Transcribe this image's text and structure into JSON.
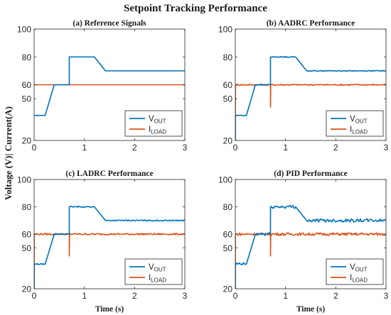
{
  "figure_title": "Setpoint Tracking Performance",
  "shared_ylabel": "Voltage (V)| Current(A)",
  "shared_xlabel": "Time (s)",
  "colors": {
    "v_out": "#0072BD",
    "i_load": "#D95319"
  },
  "chart_data": [
    {
      "type": "line",
      "title": "(a) Reference Signals",
      "xlim": [
        0,
        3
      ],
      "ylim": [
        20,
        100
      ],
      "xticks": [
        "0",
        "1",
        "2",
        "3"
      ],
      "yticks": [
        "20",
        "50",
        "60",
        "80",
        "100"
      ],
      "grid": false,
      "legend_placement": "lower-right",
      "series": [
        {
          "name": "V_OUT",
          "noise": 0,
          "x": [
            0,
            0.22,
            0.4,
            0.7,
            0.7,
            1.2,
            1.42,
            3.0
          ],
          "y": [
            38,
            38,
            60,
            60,
            80,
            80,
            70,
            70
          ]
        },
        {
          "name": "I_LOAD",
          "noise": 0,
          "x": [
            0,
            3.0
          ],
          "y": [
            60,
            60
          ]
        }
      ]
    },
    {
      "type": "line",
      "title": "(b) AADRC Performance",
      "xlim": [
        0,
        3
      ],
      "ylim": [
        20,
        100
      ],
      "xticks": [
        "0",
        "1",
        "2",
        "3"
      ],
      "yticks": [
        "20",
        "50",
        "60",
        "80",
        "100"
      ],
      "grid": false,
      "legend_placement": "lower-right",
      "series": [
        {
          "name": "V_OUT",
          "noise": 0.3,
          "x": [
            0,
            0.002,
            0.01,
            0.22,
            0.4,
            0.7,
            0.7,
            1.2,
            1.42,
            3.0
          ],
          "y": [
            20,
            37,
            38,
            38,
            60,
            60,
            80,
            80,
            70,
            70
          ]
        },
        {
          "name": "I_LOAD",
          "noise": 0.5,
          "x": [
            0,
            0.002,
            0.7,
            0.7,
            0.705,
            3.0
          ],
          "y": [
            20,
            60,
            60,
            44,
            60,
            60
          ]
        }
      ]
    },
    {
      "type": "line",
      "title": "(c) LADRC Performance",
      "xlim": [
        0,
        3
      ],
      "ylim": [
        20,
        100
      ],
      "xticks": [
        "0",
        "1",
        "2",
        "3"
      ],
      "yticks": [
        "20",
        "50",
        "60",
        "80",
        "100"
      ],
      "grid": false,
      "legend_placement": "lower-right",
      "series": [
        {
          "name": "V_OUT",
          "noise": 0.4,
          "x": [
            0,
            0.002,
            0.01,
            0.22,
            0.4,
            0.7,
            0.7,
            1.2,
            1.42,
            3.0
          ],
          "y": [
            20,
            37,
            38,
            38,
            60,
            60,
            80,
            80,
            70,
            70
          ]
        },
        {
          "name": "I_LOAD",
          "noise": 0.6,
          "x": [
            0,
            0.002,
            0.7,
            0.7,
            0.705,
            3.0
          ],
          "y": [
            20,
            60,
            60,
            44,
            60,
            60
          ]
        }
      ]
    },
    {
      "type": "line",
      "title": "(d) PID Performance",
      "xlim": [
        0,
        3
      ],
      "ylim": [
        20,
        100
      ],
      "xticks": [
        "0",
        "1",
        "2",
        "3"
      ],
      "yticks": [
        "20",
        "50",
        "60",
        "80",
        "100"
      ],
      "grid": false,
      "legend_placement": "lower-right",
      "series": [
        {
          "name": "V_OUT",
          "noise": 1.2,
          "x": [
            0,
            0.002,
            0.01,
            0.22,
            0.4,
            0.7,
            0.7,
            1.2,
            1.42,
            3.0
          ],
          "y": [
            20,
            37,
            38,
            38,
            60,
            60,
            80,
            80,
            70,
            70
          ]
        },
        {
          "name": "I_LOAD",
          "noise": 1.0,
          "x": [
            0,
            0.002,
            0.7,
            0.7,
            0.705,
            3.0
          ],
          "y": [
            20,
            60,
            60,
            44,
            60,
            60
          ]
        }
      ]
    }
  ],
  "legend": [
    {
      "main": "V",
      "sub": "OUT",
      "series": "V_OUT"
    },
    {
      "main": "I",
      "sub": "LOAD",
      "series": "I_LOAD"
    }
  ]
}
